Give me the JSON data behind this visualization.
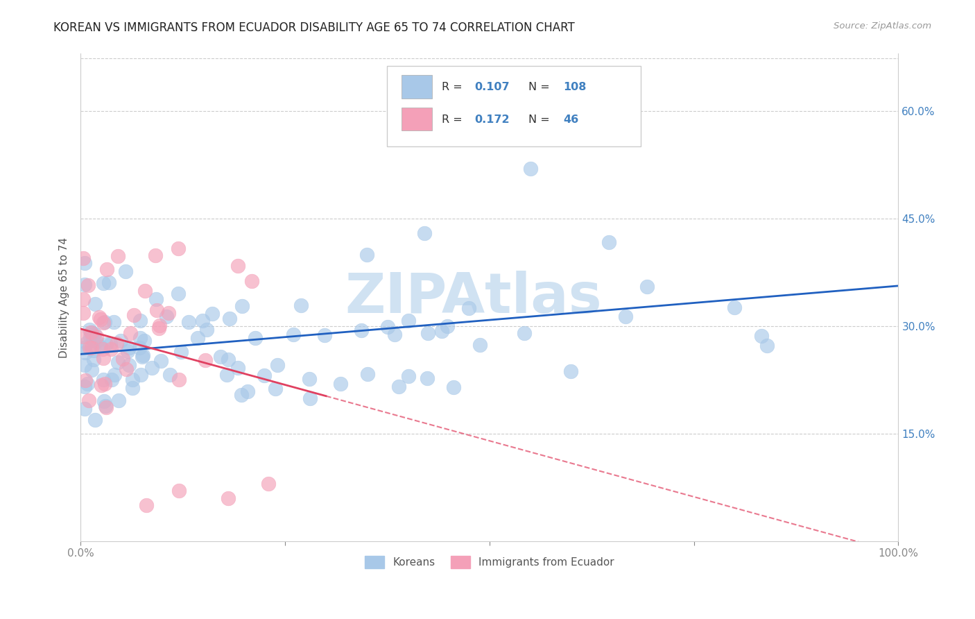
{
  "title": "KOREAN VS IMMIGRANTS FROM ECUADOR DISABILITY AGE 65 TO 74 CORRELATION CHART",
  "source": "Source: ZipAtlas.com",
  "ylabel": "Disability Age 65 to 74",
  "xlim": [
    0.0,
    1.0
  ],
  "ylim": [
    0.0,
    0.68
  ],
  "xticks": [
    0.0,
    0.25,
    0.5,
    0.75,
    1.0
  ],
  "xticklabels": [
    "0.0%",
    "",
    "",
    "",
    "100.0%"
  ],
  "yticks": [
    0.15,
    0.3,
    0.45,
    0.6
  ],
  "yticklabels": [
    "15.0%",
    "30.0%",
    "45.0%",
    "60.0%"
  ],
  "legend_labels": [
    "Koreans",
    "Immigrants from Ecuador"
  ],
  "korean_color": "#a8c8e8",
  "ecuador_color": "#f4a0b8",
  "korean_R": 0.107,
  "korean_N": 108,
  "ecuador_R": 0.172,
  "ecuador_N": 46,
  "korean_line_color": "#2060c0",
  "ecuador_line_color": "#e04060",
  "watermark_color": "#c8ddf0",
  "background_color": "#ffffff",
  "grid_color": "#cccccc",
  "title_fontsize": 12,
  "axis_fontsize": 11,
  "tick_fontsize": 11,
  "right_tick_color": "#4080c0"
}
